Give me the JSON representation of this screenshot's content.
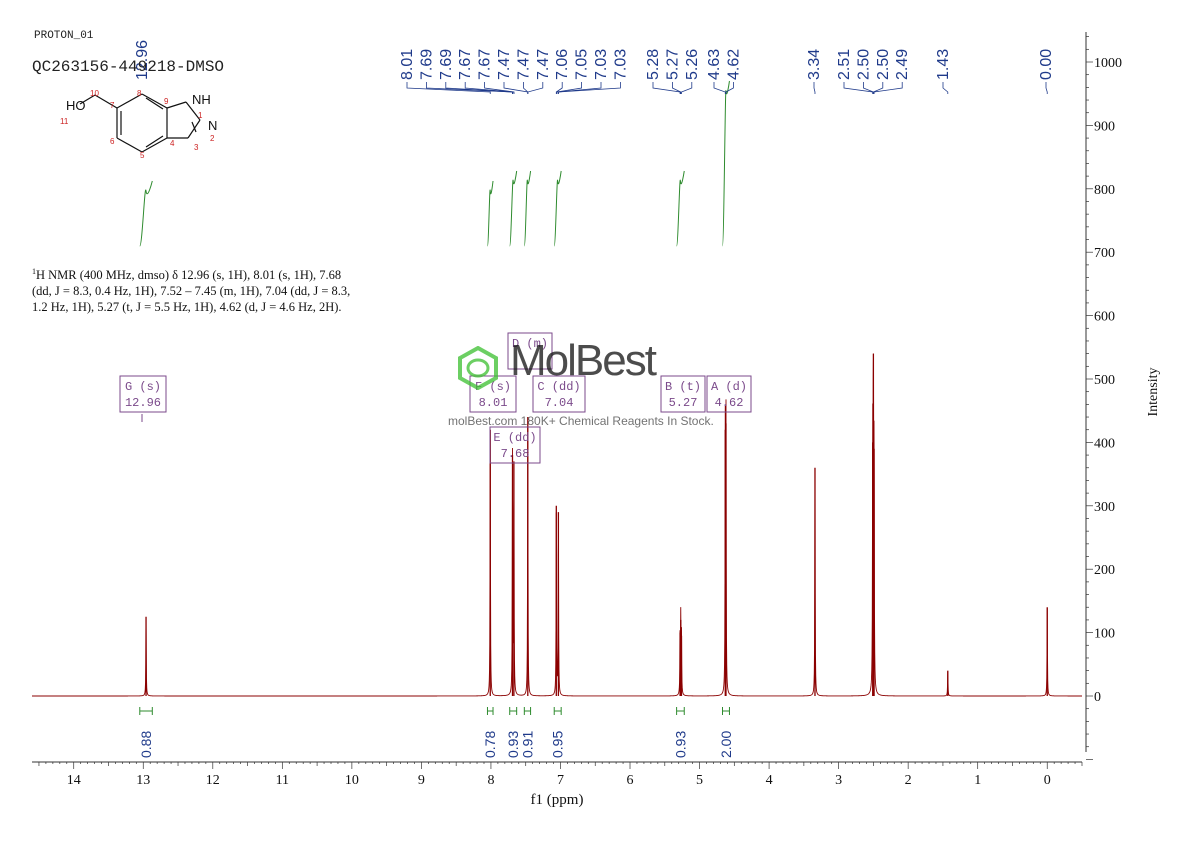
{
  "header": {
    "sample_name": "PROTON_01",
    "sample_id": "QC263156-449218-DMSO"
  },
  "nmr_description": {
    "line1_sup": "1",
    "line1": "H NMR (400 MHz, dmso) δ 12.96 (s, 1H), 8.01 (s, 1H), 7.68",
    "line2": "(dd, J = 8.3, 0.4 Hz, 1H), 7.52 – 7.45 (m, 1H), 7.04 (dd, J = 8.3,",
    "line3": "1.2 Hz, 1H), 5.27 (t, J = 5.5 Hz, 1H), 4.62 (d, J = 4.6 Hz, 2H)."
  },
  "watermark": {
    "brand": "MolBest",
    "tagline": "molBest.com 180K+ Chemical Reagents In Stock."
  },
  "colors": {
    "spectrum": "#8b0000",
    "integral": "#2e8b2e",
    "peak_label": "#1f3a8a",
    "annotation_box": "#7b4a8b",
    "structure_label": "#cc2222"
  },
  "chart_data": {
    "type": "line",
    "xlabel": "f1 (ppm)",
    "ylabel": "Intensity",
    "xlim": [
      14.6,
      -0.5
    ],
    "ylim": [
      -100,
      1050
    ],
    "x_ticks": [
      14,
      13,
      12,
      11,
      10,
      9,
      8,
      7,
      6,
      5,
      4,
      3,
      2,
      1,
      0
    ],
    "y_ticks": [
      0,
      100,
      200,
      300,
      400,
      500,
      600,
      700,
      800,
      900,
      1000
    ],
    "peaks": [
      {
        "ppm": 12.96,
        "height": 125
      },
      {
        "ppm": 8.01,
        "height": 420
      },
      {
        "ppm": 7.69,
        "height": 380
      },
      {
        "ppm": 7.67,
        "height": 370
      },
      {
        "ppm": 7.47,
        "height": 440
      },
      {
        "ppm": 7.06,
        "height": 300
      },
      {
        "ppm": 7.03,
        "height": 290
      },
      {
        "ppm": 5.28,
        "height": 100
      },
      {
        "ppm": 5.27,
        "height": 120
      },
      {
        "ppm": 5.26,
        "height": 95
      },
      {
        "ppm": 4.63,
        "height": 420
      },
      {
        "ppm": 4.62,
        "height": 430
      },
      {
        "ppm": 3.34,
        "height": 360
      },
      {
        "ppm": 2.51,
        "height": 400
      },
      {
        "ppm": 2.5,
        "height": 540
      },
      {
        "ppm": 2.49,
        "height": 390
      },
      {
        "ppm": 1.43,
        "height": 40
      },
      {
        "ppm": 0.0,
        "height": 140
      }
    ],
    "peak_labels": [
      {
        "text": "12.96",
        "ppm": 12.96
      },
      {
        "text": "8.01",
        "ppm": 8.01
      },
      {
        "text": "7.69",
        "ppm": 7.69
      },
      {
        "text": "7.69",
        "ppm": 7.69
      },
      {
        "text": "7.67",
        "ppm": 7.67
      },
      {
        "text": "7.67",
        "ppm": 7.67
      },
      {
        "text": "7.47",
        "ppm": 7.47
      },
      {
        "text": "7.47",
        "ppm": 7.47
      },
      {
        "text": "7.47",
        "ppm": 7.47
      },
      {
        "text": "7.06",
        "ppm": 7.06
      },
      {
        "text": "7.05",
        "ppm": 7.05
      },
      {
        "text": "7.03",
        "ppm": 7.03
      },
      {
        "text": "7.03",
        "ppm": 7.03
      },
      {
        "text": "5.28",
        "ppm": 5.28
      },
      {
        "text": "5.27",
        "ppm": 5.27
      },
      {
        "text": "5.26",
        "ppm": 5.26
      },
      {
        "text": "4.63",
        "ppm": 4.63
      },
      {
        "text": "4.62",
        "ppm": 4.62
      },
      {
        "text": "3.34",
        "ppm": 3.34
      },
      {
        "text": "2.51",
        "ppm": 2.51
      },
      {
        "text": "2.50",
        "ppm": 2.5
      },
      {
        "text": "2.50",
        "ppm": 2.5
      },
      {
        "text": "2.49",
        "ppm": 2.49
      },
      {
        "text": "1.43",
        "ppm": 1.43
      },
      {
        "text": "0.00",
        "ppm": 0.0
      }
    ],
    "integrations": [
      {
        "value": "0.88",
        "from": 13.05,
        "to": 12.87
      },
      {
        "value": "0.78",
        "from": 8.05,
        "to": 7.97
      },
      {
        "value": "0.93",
        "from": 7.73,
        "to": 7.63
      },
      {
        "value": "0.91",
        "from": 7.52,
        "to": 7.43
      },
      {
        "value": "0.95",
        "from": 7.09,
        "to": 6.99
      },
      {
        "value": "0.93",
        "from": 5.33,
        "to": 5.22
      },
      {
        "value": "2.00",
        "from": 4.67,
        "to": 4.57
      }
    ],
    "annotations": [
      {
        "label": "G (s)",
        "value": "12.96",
        "ppm": 12.96
      },
      {
        "label": "F (s)",
        "value": "8.01",
        "ppm": 8.01
      },
      {
        "label": "E (dd)",
        "value": "7.68",
        "ppm": 7.68
      },
      {
        "label": "D (m)",
        "value": "",
        "ppm": 7.48
      },
      {
        "label": "C (dd)",
        "value": "7.04",
        "ppm": 7.04
      },
      {
        "label": "B (t)",
        "value": "5.27",
        "ppm": 5.27
      },
      {
        "label": "A (d)",
        "value": "4.62",
        "ppm": 4.62
      }
    ]
  },
  "structure": {
    "atoms": [
      {
        "text": "HO",
        "kind": "text"
      },
      {
        "text": "11",
        "kind": "num"
      },
      {
        "text": "10",
        "kind": "num"
      },
      {
        "text": "7",
        "kind": "num"
      },
      {
        "text": "8",
        "kind": "num"
      },
      {
        "text": "9",
        "kind": "num"
      },
      {
        "text": "NH",
        "kind": "text"
      },
      {
        "text": "1",
        "kind": "num"
      },
      {
        "text": "N",
        "kind": "text"
      },
      {
        "text": "2",
        "kind": "num"
      },
      {
        "text": "3",
        "kind": "num"
      },
      {
        "text": "4",
        "kind": "num"
      },
      {
        "text": "5",
        "kind": "num"
      },
      {
        "text": "6",
        "kind": "num"
      }
    ]
  }
}
